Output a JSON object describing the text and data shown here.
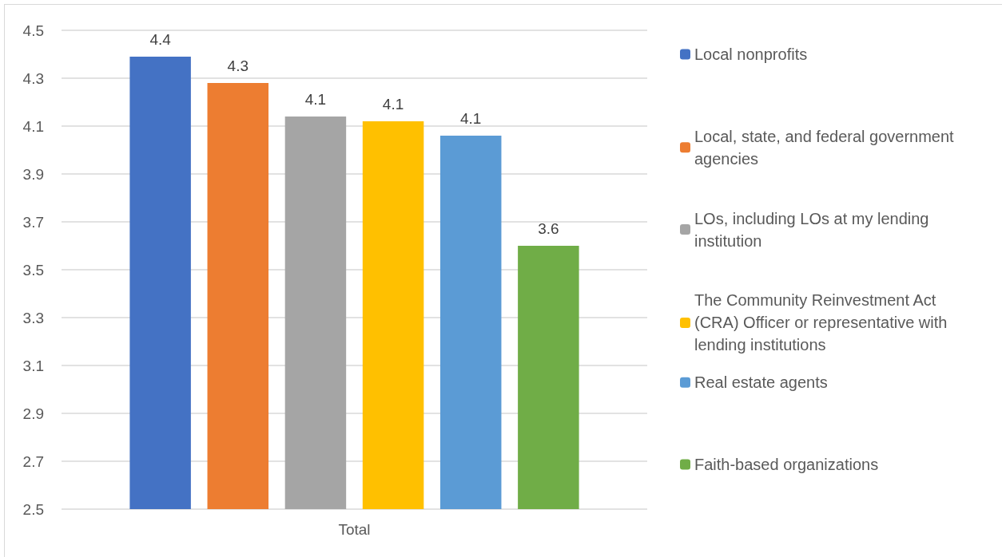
{
  "chart_data": {
    "type": "bar",
    "categories": [
      "Total"
    ],
    "series": [
      {
        "name": "Local nonprofits",
        "color": "#4472c4",
        "values": [
          4.39
        ],
        "value_labels": [
          "4.4"
        ]
      },
      {
        "name": "Local, state, and federal government agencies",
        "color": "#ed7d31",
        "values": [
          4.28
        ],
        "value_labels": [
          "4.3"
        ]
      },
      {
        "name": "LOs, including LOs at my lending institution",
        "color": "#a5a5a5",
        "values": [
          4.14
        ],
        "value_labels": [
          "4.1"
        ]
      },
      {
        "name": "The Community Reinvestment Act (CRA) Officer or representative with lending institutions",
        "color": "#ffc000",
        "values": [
          4.12
        ],
        "value_labels": [
          "4.1"
        ]
      },
      {
        "name": "Real estate agents",
        "color": "#5b9bd5",
        "values": [
          4.06
        ],
        "value_labels": [
          "4.1"
        ]
      },
      {
        "name": "Faith-based organizations",
        "color": "#70ad47",
        "values": [
          3.6
        ],
        "value_labels": [
          "3.6"
        ]
      }
    ],
    "ylim": [
      2.5,
      4.5
    ],
    "yticks": [
      2.5,
      2.7,
      2.9,
      3.1,
      3.3,
      3.5,
      3.7,
      3.9,
      4.1,
      4.3,
      4.5
    ],
    "grid": "y",
    "legend": "right"
  }
}
